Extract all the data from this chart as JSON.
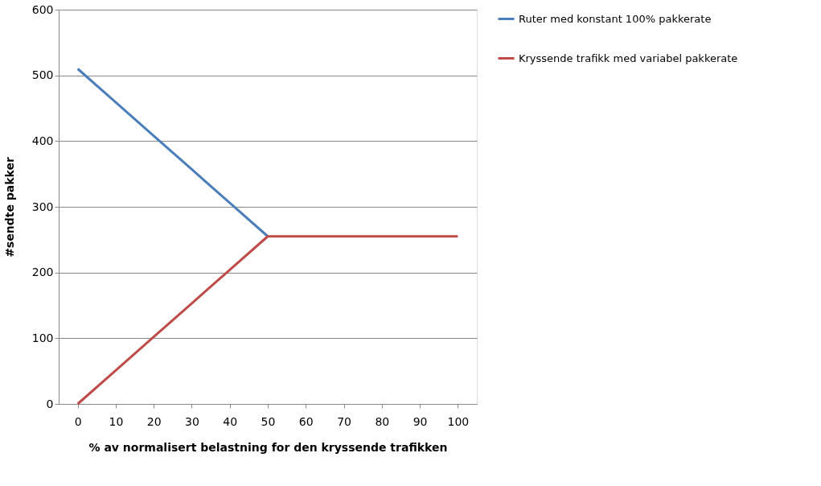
{
  "chart_data": {
    "type": "line",
    "xlabel": "% av normalisert belastning for den kryssende trafikken",
    "ylabel": "#sendte pakker",
    "categories": [
      "0",
      "10",
      "20",
      "30",
      "40",
      "50",
      "60",
      "70",
      "80",
      "90",
      "100"
    ],
    "series": [
      {
        "name": "Ruter med konstant  100% pakkerate",
        "color": "#4a7ebb",
        "values": [
          510,
          459,
          408,
          357,
          306,
          255,
          null,
          null,
          null,
          null,
          null
        ]
      },
      {
        "name": "Kryssende trafikk med variabel pakkerate",
        "color": "#be4b48",
        "values": [
          0,
          51,
          102,
          153,
          204,
          255,
          255,
          255,
          255,
          255,
          255
        ]
      }
    ],
    "ylim": [
      0,
      600
    ],
    "yticks": [
      0,
      100,
      200,
      300,
      400,
      500,
      600
    ],
    "grid": "y",
    "legend": "right",
    "marker": "none",
    "line_style": "solid"
  }
}
